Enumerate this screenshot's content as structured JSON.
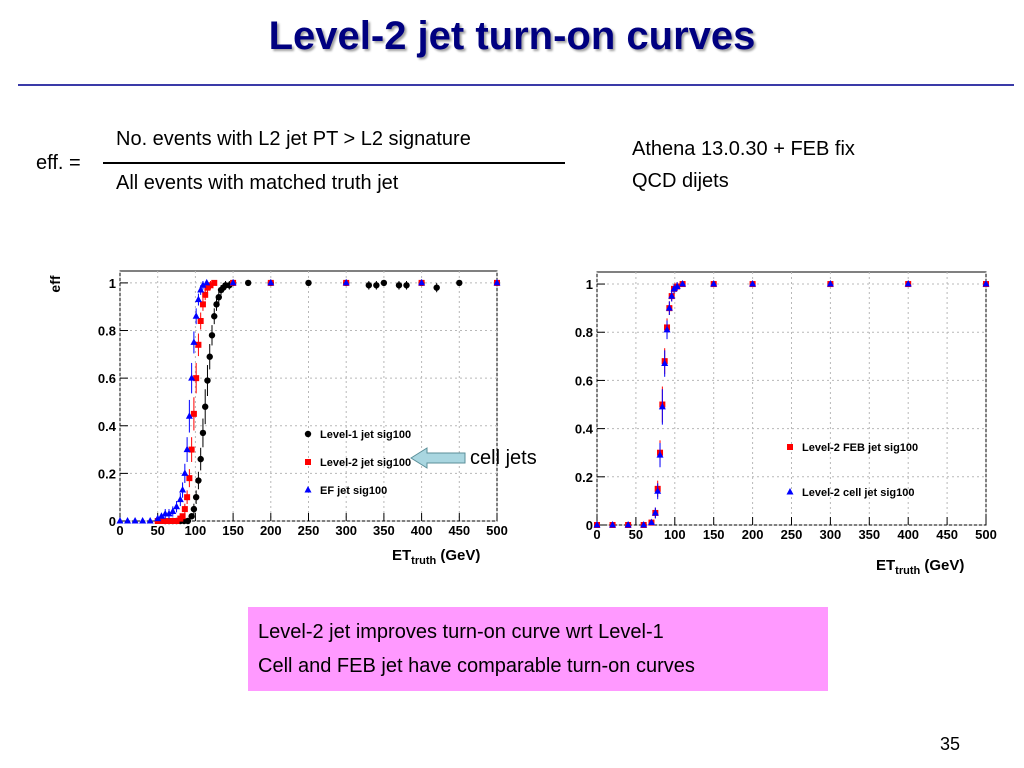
{
  "slide": {
    "title": "Level-2 jet turn-on curves",
    "formula": {
      "lhs": "eff. =",
      "numerator": "No. events with L2 jet PT > L2 signature",
      "denominator": "All events with matched truth jet"
    },
    "sample": [
      "Athena 13.0.30 + FEB fix",
      "QCD dijets"
    ],
    "callout": "cell jets",
    "notes": [
      "Level-2 jet improves turn-on curve wrt Level-1",
      "Cell and FEB jet have comparable turn-on curves"
    ],
    "page_number": "35"
  },
  "colors": {
    "title": "#000080",
    "level1": "#000000",
    "level2": "#ff0000",
    "ef": "#0000ff",
    "note_bg": "#ff99ff",
    "arrow": "#a9d6e0"
  },
  "chart_data": [
    {
      "type": "scatter",
      "ylabel": "eff",
      "xlabel": "ET",
      "xlabel_sub": "truth",
      "xlabel_unit": "(GeV)",
      "xlim": [
        0,
        500
      ],
      "ylim": [
        0,
        1.05
      ],
      "xticks": [
        0,
        50,
        100,
        150,
        200,
        250,
        300,
        350,
        400,
        450,
        500
      ],
      "yticks": [
        0,
        0.2,
        0.4,
        0.6,
        0.8,
        1
      ],
      "ytick_labels": [
        "0",
        "0.2",
        "0.4",
        "0.6",
        "0.8",
        "1"
      ],
      "grid": true,
      "legend_position": "bottom-right",
      "series": [
        {
          "name": "Level-1 jet sig100",
          "marker": "circle",
          "color": "#000000",
          "points": [
            [
              60,
              0
            ],
            [
              65,
              0
            ],
            [
              70,
              0
            ],
            [
              75,
              0
            ],
            [
              80,
              0
            ],
            [
              85,
              0
            ],
            [
              90,
              0
            ],
            [
              95,
              0.02
            ],
            [
              98,
              0.05
            ],
            [
              101,
              0.1
            ],
            [
              104,
              0.17
            ],
            [
              107,
              0.26
            ],
            [
              110,
              0.37
            ],
            [
              113,
              0.48
            ],
            [
              116,
              0.59
            ],
            [
              119,
              0.69
            ],
            [
              122,
              0.78
            ],
            [
              125,
              0.86
            ],
            [
              128,
              0.91
            ],
            [
              131,
              0.94
            ],
            [
              134,
              0.97
            ],
            [
              137,
              0.98
            ],
            [
              140,
              0.99
            ],
            [
              145,
              0.99
            ],
            [
              150,
              1
            ],
            [
              170,
              1
            ],
            [
              200,
              1
            ],
            [
              250,
              1
            ],
            [
              300,
              1
            ],
            [
              330,
              0.99
            ],
            [
              340,
              0.99
            ],
            [
              350,
              1
            ],
            [
              370,
              0.99
            ],
            [
              380,
              0.99
            ],
            [
              400,
              1
            ],
            [
              420,
              0.98
            ],
            [
              450,
              1
            ],
            [
              500,
              1
            ]
          ]
        },
        {
          "name": "Level-2 jet sig100",
          "marker": "square",
          "color": "#ff0000",
          "points": [
            [
              50,
              0
            ],
            [
              55,
              0
            ],
            [
              60,
              0
            ],
            [
              65,
              0
            ],
            [
              70,
              0
            ],
            [
              75,
              0
            ],
            [
              80,
              0.01
            ],
            [
              83,
              0.02
            ],
            [
              86,
              0.05
            ],
            [
              89,
              0.1
            ],
            [
              92,
              0.18
            ],
            [
              95,
              0.3
            ],
            [
              98,
              0.45
            ],
            [
              101,
              0.6
            ],
            [
              104,
              0.74
            ],
            [
              107,
              0.84
            ],
            [
              110,
              0.91
            ],
            [
              113,
              0.95
            ],
            [
              116,
              0.98
            ],
            [
              120,
              0.99
            ],
            [
              125,
              1
            ],
            [
              150,
              1
            ],
            [
              200,
              1
            ],
            [
              300,
              1
            ],
            [
              400,
              1
            ],
            [
              500,
              1
            ]
          ]
        },
        {
          "name": "EF jet sig100",
          "marker": "triangle",
          "color": "#0000ff",
          "points": [
            [
              0,
              0
            ],
            [
              10,
              0
            ],
            [
              20,
              0
            ],
            [
              30,
              0
            ],
            [
              40,
              0
            ],
            [
              50,
              0.01
            ],
            [
              55,
              0.02
            ],
            [
              60,
              0.03
            ],
            [
              65,
              0.03
            ],
            [
              70,
              0.04
            ],
            [
              75,
              0.06
            ],
            [
              80,
              0.09
            ],
            [
              83,
              0.13
            ],
            [
              86,
              0.2
            ],
            [
              89,
              0.3
            ],
            [
              92,
              0.44
            ],
            [
              95,
              0.6
            ],
            [
              98,
              0.75
            ],
            [
              101,
              0.86
            ],
            [
              104,
              0.93
            ],
            [
              107,
              0.97
            ],
            [
              110,
              0.99
            ],
            [
              115,
              1
            ],
            [
              150,
              1
            ],
            [
              200,
              1
            ],
            [
              300,
              1
            ],
            [
              400,
              1
            ],
            [
              500,
              1
            ]
          ]
        }
      ]
    },
    {
      "type": "scatter",
      "ylabel": "",
      "xlabel": "ET",
      "xlabel_sub": "truth",
      "xlabel_unit": "(GeV)",
      "xlim": [
        0,
        500
      ],
      "ylim": [
        0,
        1.05
      ],
      "xticks": [
        0,
        50,
        100,
        150,
        200,
        250,
        300,
        350,
        400,
        450,
        500
      ],
      "yticks": [
        0,
        0.2,
        0.4,
        0.6,
        0.8,
        1
      ],
      "ytick_labels": [
        "0",
        "0.2",
        "0.4",
        "0.6",
        "0.8",
        "1"
      ],
      "grid": true,
      "legend_position": "bottom-right",
      "series": [
        {
          "name": "Level-2 FEB jet sig100",
          "marker": "square",
          "color": "#ff0000",
          "points": [
            [
              0,
              0
            ],
            [
              20,
              0
            ],
            [
              40,
              0
            ],
            [
              60,
              0
            ],
            [
              70,
              0.01
            ],
            [
              75,
              0.05
            ],
            [
              78,
              0.15
            ],
            [
              81,
              0.3
            ],
            [
              84,
              0.5
            ],
            [
              87,
              0.68
            ],
            [
              90,
              0.82
            ],
            [
              93,
              0.9
            ],
            [
              96,
              0.95
            ],
            [
              99,
              0.98
            ],
            [
              103,
              0.99
            ],
            [
              110,
              1
            ],
            [
              150,
              1
            ],
            [
              200,
              1
            ],
            [
              300,
              1
            ],
            [
              400,
              1
            ],
            [
              500,
              1
            ]
          ]
        },
        {
          "name": "Level-2 cell jet sig100",
          "marker": "triangle",
          "color": "#0000ff",
          "points": [
            [
              0,
              0
            ],
            [
              20,
              0
            ],
            [
              40,
              0
            ],
            [
              60,
              0
            ],
            [
              70,
              0.01
            ],
            [
              75,
              0.05
            ],
            [
              78,
              0.14
            ],
            [
              81,
              0.29
            ],
            [
              84,
              0.49
            ],
            [
              87,
              0.67
            ],
            [
              90,
              0.81
            ],
            [
              93,
              0.9
            ],
            [
              96,
              0.95
            ],
            [
              99,
              0.98
            ],
            [
              103,
              0.99
            ],
            [
              110,
              1
            ],
            [
              150,
              1
            ],
            [
              200,
              1
            ],
            [
              300,
              1
            ],
            [
              400,
              1
            ],
            [
              500,
              1
            ]
          ]
        }
      ]
    }
  ]
}
